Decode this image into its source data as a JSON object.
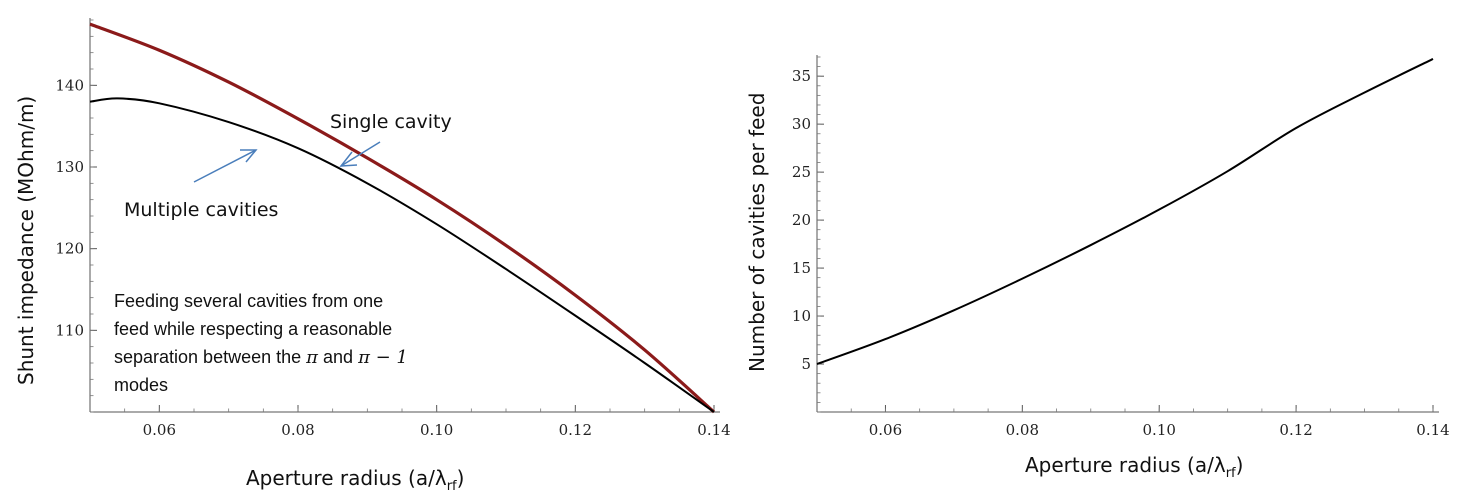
{
  "chart_data": [
    {
      "type": "line",
      "xlabel": "Aperture radius (a/λ",
      "xlabel_sub": "rf",
      "xlabel_close": ")",
      "ylabel": "Shunt impedance (MOhm/m)",
      "xlim": [
        0.05,
        0.14
      ],
      "ylim": [
        100,
        148
      ],
      "x_ticks": [
        0.06,
        0.08,
        0.1,
        0.12,
        0.14
      ],
      "x_tick_labels": [
        "0.06",
        "0.08",
        "0.10",
        "0.12",
        "0.14"
      ],
      "y_ticks": [
        110,
        120,
        130,
        140
      ],
      "y_tick_labels": [
        "110",
        "120",
        "130",
        "140"
      ],
      "grid": false,
      "series": [
        {
          "name": "Single cavity",
          "color": "#8b1a1a",
          "x": [
            0.05,
            0.06,
            0.07,
            0.08,
            0.09,
            0.1,
            0.11,
            0.12,
            0.13,
            0.14
          ],
          "y": [
            147.5,
            144.3,
            140.4,
            135.9,
            131.1,
            126.0,
            120.4,
            114.3,
            107.6,
            100.0
          ]
        },
        {
          "name": "Multiple cavities",
          "color": "#000000",
          "x": [
            0.05,
            0.054,
            0.06,
            0.07,
            0.08,
            0.09,
            0.1,
            0.11,
            0.12,
            0.13,
            0.14
          ],
          "y": [
            138.0,
            138.4,
            137.8,
            135.5,
            132.3,
            128.0,
            123.0,
            117.5,
            111.8,
            106.0,
            100.0
          ]
        }
      ],
      "annotations": [
        {
          "text": "Single cavity"
        },
        {
          "text": "Multiple cavities"
        }
      ],
      "note_lines": [
        "Feeding several cavities from one",
        "feed while respecting a reasonable",
        "separation between the",
        "and",
        "modes"
      ],
      "note_symbols": {
        "pi": "π",
        "pi_minus_1": "π − 1"
      }
    },
    {
      "type": "line",
      "xlabel": "Aperture radius (a/λ",
      "xlabel_sub": "rf",
      "xlabel_close": ")",
      "ylabel": "Number of cavities per feed",
      "xlim": [
        0.05,
        0.14
      ],
      "ylim": [
        0,
        37
      ],
      "x_ticks": [
        0.06,
        0.08,
        0.1,
        0.12,
        0.14
      ],
      "x_tick_labels": [
        "0.06",
        "0.08",
        "0.10",
        "0.12",
        "0.14"
      ],
      "y_ticks": [
        5,
        10,
        15,
        20,
        25,
        30,
        35
      ],
      "y_tick_labels": [
        "5",
        "10",
        "15",
        "20",
        "25",
        "30",
        "35"
      ],
      "grid": false,
      "series": [
        {
          "color": "#000000",
          "x": [
            0.05,
            0.06,
            0.07,
            0.08,
            0.09,
            0.1,
            0.11,
            0.12,
            0.13,
            0.14
          ],
          "y": [
            5.0,
            7.6,
            10.6,
            13.9,
            17.4,
            21.1,
            25.1,
            29.6,
            33.3,
            36.8
          ]
        }
      ]
    }
  ]
}
